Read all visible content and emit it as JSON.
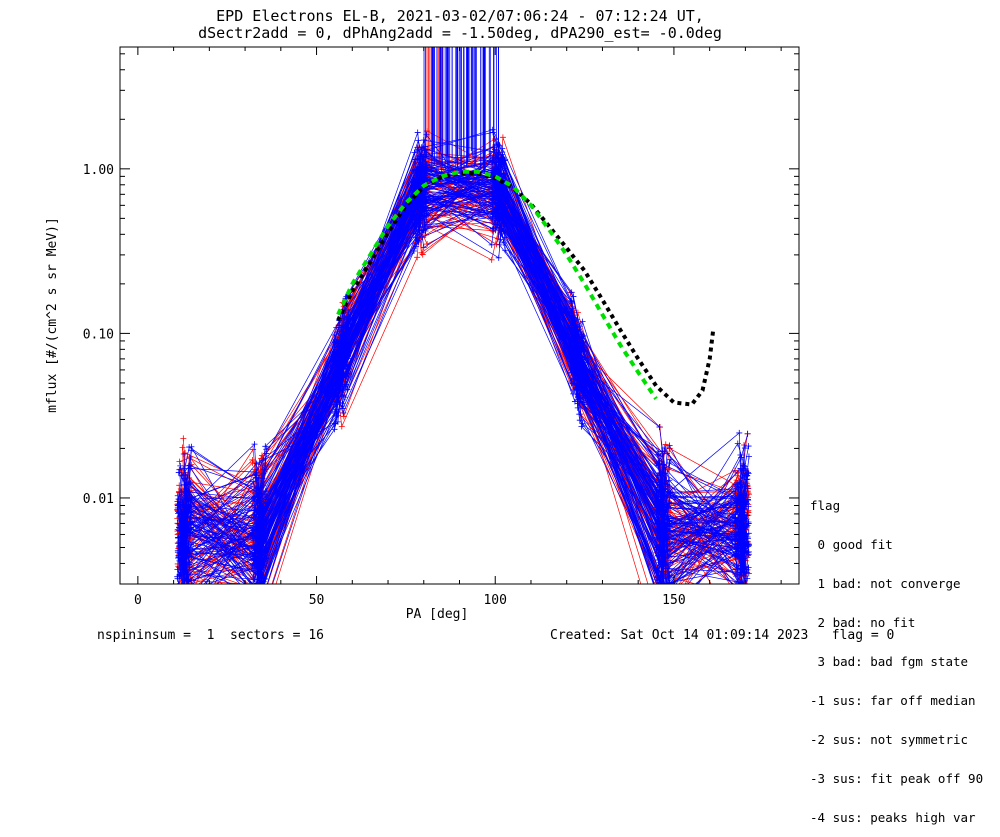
{
  "chart_data": {
    "type": "line",
    "title": "EPD Electrons EL-B, 2021-03-02/07:06:24 - 07:12:24 UT,",
    "subtitle": "dSectr2add = 0, dPhAng2add = -1.50deg, dPA290_est=  -0.0deg",
    "xlabel": "PA [deg]",
    "ylabel": "mflux [#/(cm^2 s sr MeV)]",
    "xlim": [
      -5,
      185
    ],
    "ylim": [
      0.003,
      5.5
    ],
    "yscale": "log",
    "x_ticks": [
      0,
      50,
      100,
      150
    ],
    "y_ticks": [
      {
        "value": 0.01,
        "label": "0.01"
      },
      {
        "value": 0.1,
        "label": "0.10"
      },
      {
        "value": 1.0,
        "label": "1.00"
      }
    ],
    "pa_columns": [
      12,
      14,
      33,
      35,
      56,
      58,
      78,
      80,
      100,
      102,
      122,
      124,
      146,
      148,
      168,
      170
    ],
    "series": [
      {
        "color": "#ff0000",
        "count": 70,
        "seed": 7
      },
      {
        "color": "#0000ff",
        "count": 110,
        "seed": 13
      }
    ],
    "fit_green": {
      "color": "#00e000",
      "x": [
        56,
        60,
        65,
        70,
        75,
        80,
        85,
        90,
        95,
        100,
        105,
        110,
        115,
        120,
        125,
        130,
        135,
        140,
        145
      ],
      "y": [
        0.13,
        0.2,
        0.3,
        0.45,
        0.62,
        0.79,
        0.9,
        0.96,
        0.96,
        0.9,
        0.78,
        0.6,
        0.43,
        0.3,
        0.2,
        0.13,
        0.085,
        0.058,
        0.04
      ]
    },
    "fit_black": {
      "color": "#000000",
      "x": [
        56,
        60,
        65,
        70,
        75,
        80,
        85,
        90,
        95,
        100,
        105,
        110,
        115,
        120,
        125,
        130,
        135,
        140,
        145,
        150,
        155,
        158,
        160,
        161
      ],
      "y": [
        0.12,
        0.18,
        0.27,
        0.41,
        0.6,
        0.78,
        0.89,
        0.94,
        0.94,
        0.88,
        0.77,
        0.61,
        0.45,
        0.33,
        0.24,
        0.16,
        0.105,
        0.07,
        0.048,
        0.038,
        0.037,
        0.045,
        0.07,
        0.105
      ]
    }
  },
  "legend": {
    "title": "flag",
    "items": [
      " 0 good fit",
      " 1 bad: not converge",
      " 2 bad: no fit",
      " 3 bad: bad fgm state",
      "-1 sus: far off median",
      "-2 sus: not symmetric",
      "-3 sus: fit peak off 90",
      "-4 sus: peaks high var"
    ]
  },
  "footer": {
    "left": "nspininsum =  1  sectors = 16",
    "right": "Created: Sat Oct 14 01:09:14 2023   flag = 0"
  }
}
